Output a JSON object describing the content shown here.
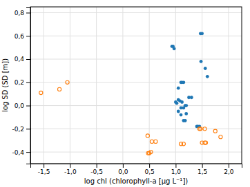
{
  "chart_data": {
    "type": "scatter",
    "xlabel": "log chl (chlorophyll-a [μg L⁻¹])",
    "ylabel": "log SD (SD [m])",
    "xlim": [
      -1.75,
      2.25
    ],
    "ylim": [
      -0.5,
      0.85
    ],
    "xticks": [
      {
        "value": -1.5,
        "label": "-1,5"
      },
      {
        "value": -1.0,
        "label": "-1,0"
      },
      {
        "value": -0.5,
        "label": "-0,5"
      },
      {
        "value": 0.0,
        "label": "0,0"
      },
      {
        "value": 0.5,
        "label": "0,5"
      },
      {
        "value": 1.0,
        "label": "1,0"
      },
      {
        "value": 1.5,
        "label": "1,5"
      },
      {
        "value": 2.0,
        "label": "2,0"
      }
    ],
    "yticks": [
      {
        "value": -0.4,
        "label": "-0,4"
      },
      {
        "value": -0.2,
        "label": "-0,2"
      },
      {
        "value": 0.0,
        "label": "0,0"
      },
      {
        "value": 0.2,
        "label": "0,2"
      },
      {
        "value": 0.4,
        "label": "0,4"
      },
      {
        "value": 0.6,
        "label": "0,6"
      },
      {
        "value": 0.8,
        "label": "0,8"
      }
    ],
    "grid": true,
    "series": [
      {
        "marker": "filled-circle",
        "x": [
          0.93,
          0.95,
          0.97,
          1.47,
          1.5,
          1.48,
          1.56,
          1.6,
          1.1,
          1.12,
          1.15,
          1.05,
          1.0,
          1.02,
          1.05,
          1.08,
          1.12,
          1.1,
          1.15,
          1.18,
          1.2,
          1.05,
          1.1,
          1.2,
          1.15,
          1.18,
          1.25,
          1.3,
          1.4,
          1.42,
          1.45
        ],
        "values": [
          0.51,
          0.51,
          0.49,
          0.62,
          0.62,
          0.38,
          0.32,
          0.25,
          0.2,
          0.2,
          0.2,
          0.15,
          0.03,
          0.02,
          0.05,
          0.04,
          0.03,
          -0.02,
          -0.02,
          0.0,
          0.0,
          -0.05,
          -0.08,
          -0.07,
          -0.13,
          -0.13,
          0.07,
          0.07,
          -0.18,
          -0.18,
          -0.18
        ]
      },
      {
        "marker": "open-circle",
        "x": [
          -1.55,
          -1.2,
          -1.05,
          0.48,
          0.5,
          0.53,
          0.55,
          0.62,
          0.47,
          1.1,
          1.15,
          1.45,
          1.47,
          1.55,
          1.75,
          1.5,
          1.55,
          1.57,
          1.85
        ],
        "values": [
          0.11,
          0.14,
          0.2,
          -0.41,
          -0.41,
          -0.4,
          -0.31,
          -0.31,
          -0.26,
          -0.33,
          -0.33,
          -0.2,
          -0.2,
          -0.2,
          -0.22,
          -0.32,
          -0.32,
          -0.32,
          -0.27
        ]
      }
    ]
  }
}
